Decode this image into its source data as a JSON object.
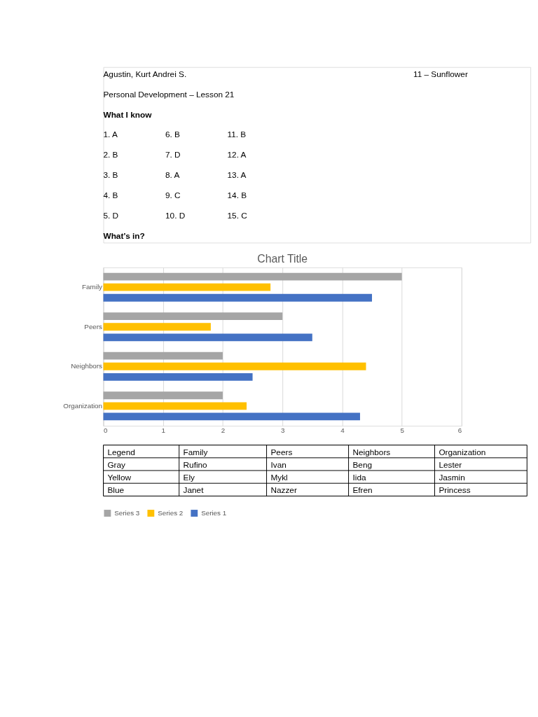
{
  "chart_data": {
    "type": "bar",
    "orientation": "horizontal",
    "title": "Chart Title",
    "categories": [
      "Family",
      "Peers",
      "Neighbors",
      "Organization"
    ],
    "series": [
      {
        "name": "Series 1",
        "color": "#4472c4",
        "values": [
          4.5,
          3.5,
          2.5,
          4.3
        ]
      },
      {
        "name": "Series 2",
        "color": "#ffc000",
        "values": [
          2.8,
          1.8,
          4.4,
          2.4
        ]
      },
      {
        "name": "Series 3",
        "color": "#a5a5a5",
        "values": [
          5,
          3,
          2,
          2
        ]
      }
    ],
    "xlim": [
      0,
      6
    ],
    "xticks": [
      0,
      1,
      2,
      3,
      4,
      5,
      6
    ],
    "grid": "x",
    "legend": "bottom",
    "annotations": [
      "Agustin, Kurt Andrei S.",
      "11 – Sunflower",
      "Personal Development – Lesson 21",
      "What I know",
      "1. A",
      "2. B",
      "3. B",
      "4. B",
      "5. D",
      "6. B",
      "7. D",
      "8. A",
      "9. C",
      "10. D",
      "11. B",
      "12. A",
      "13. A",
      "14. B",
      "15. C",
      "What’s in?",
      "Legend",
      "Family",
      "Peers",
      "Neighbors",
      "Organization",
      "Gray",
      "Rufino",
      "Ivan",
      "Beng",
      "Lester",
      "Yellow",
      "Ely",
      "Mykl",
      "Iida",
      "Jasmin",
      "Blue",
      "Janet",
      "Nazzer",
      "Efren",
      "Princess"
    ]
  }
}
